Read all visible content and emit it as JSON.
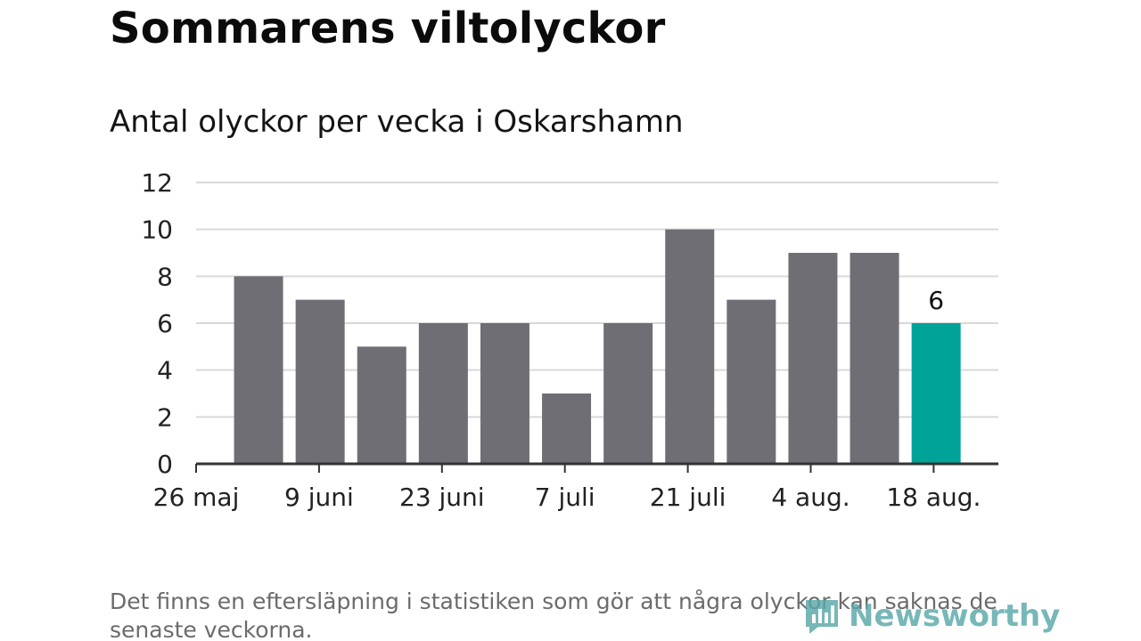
{
  "title": "Sommarens viltolyckor",
  "subtitle": "Antal olyckor per vecka i Oskarshamn",
  "footnote": "Det finns en eftersläpning i statistiken som gör att några olyckor kan saknas de senaste veckorna.",
  "logo": {
    "text": "Newsworthy",
    "icon": "newsworthy-logo-icon"
  },
  "colors": {
    "bar": "#6f6e74",
    "highlight": "#00a398",
    "grid": "#d9d9d9",
    "axis": "#333333"
  },
  "chart_data": {
    "type": "bar",
    "title": "Sommarens viltolyckor",
    "subtitle": "Antal olyckor per vecka i Oskarshamn",
    "xlabel": "",
    "ylabel": "",
    "ylim": [
      0,
      12
    ],
    "yticks": [
      0,
      2,
      4,
      6,
      8,
      10,
      12
    ],
    "xtick_labels": [
      "26 maj",
      "9 juni",
      "23 juni",
      "7 juli",
      "21 juli",
      "4 aug.",
      "18 aug."
    ],
    "grid": true,
    "values": [
      8,
      7,
      5,
      6,
      6,
      3,
      6,
      10,
      7,
      9,
      9,
      6
    ],
    "highlight_index": 11,
    "data_labels": [
      {
        "index": 11,
        "text": "6"
      }
    ]
  }
}
